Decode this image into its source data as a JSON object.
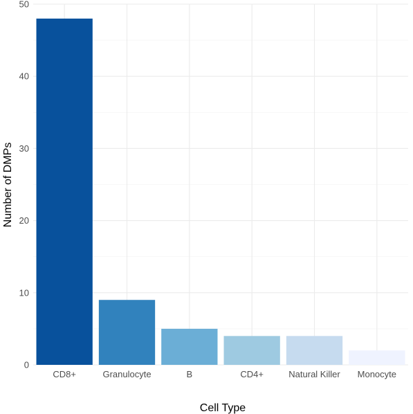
{
  "chart_data": {
    "type": "bar",
    "title": "",
    "xlabel": "Cell Type",
    "ylabel": "Number of DMPs",
    "categories": [
      "CD8+",
      "Granulocyte",
      "B",
      "CD4+",
      "Natural Killer",
      "Monocyte"
    ],
    "values": [
      48,
      9,
      5,
      4,
      4,
      2
    ],
    "colors": [
      "#08519c",
      "#3182bd",
      "#6baed6",
      "#9ecae1",
      "#c6dbef",
      "#eff3ff"
    ],
    "ylim": [
      0,
      50
    ],
    "yticks": [
      0,
      10,
      20,
      30,
      40,
      50
    ],
    "grid": true,
    "legend": "none"
  }
}
